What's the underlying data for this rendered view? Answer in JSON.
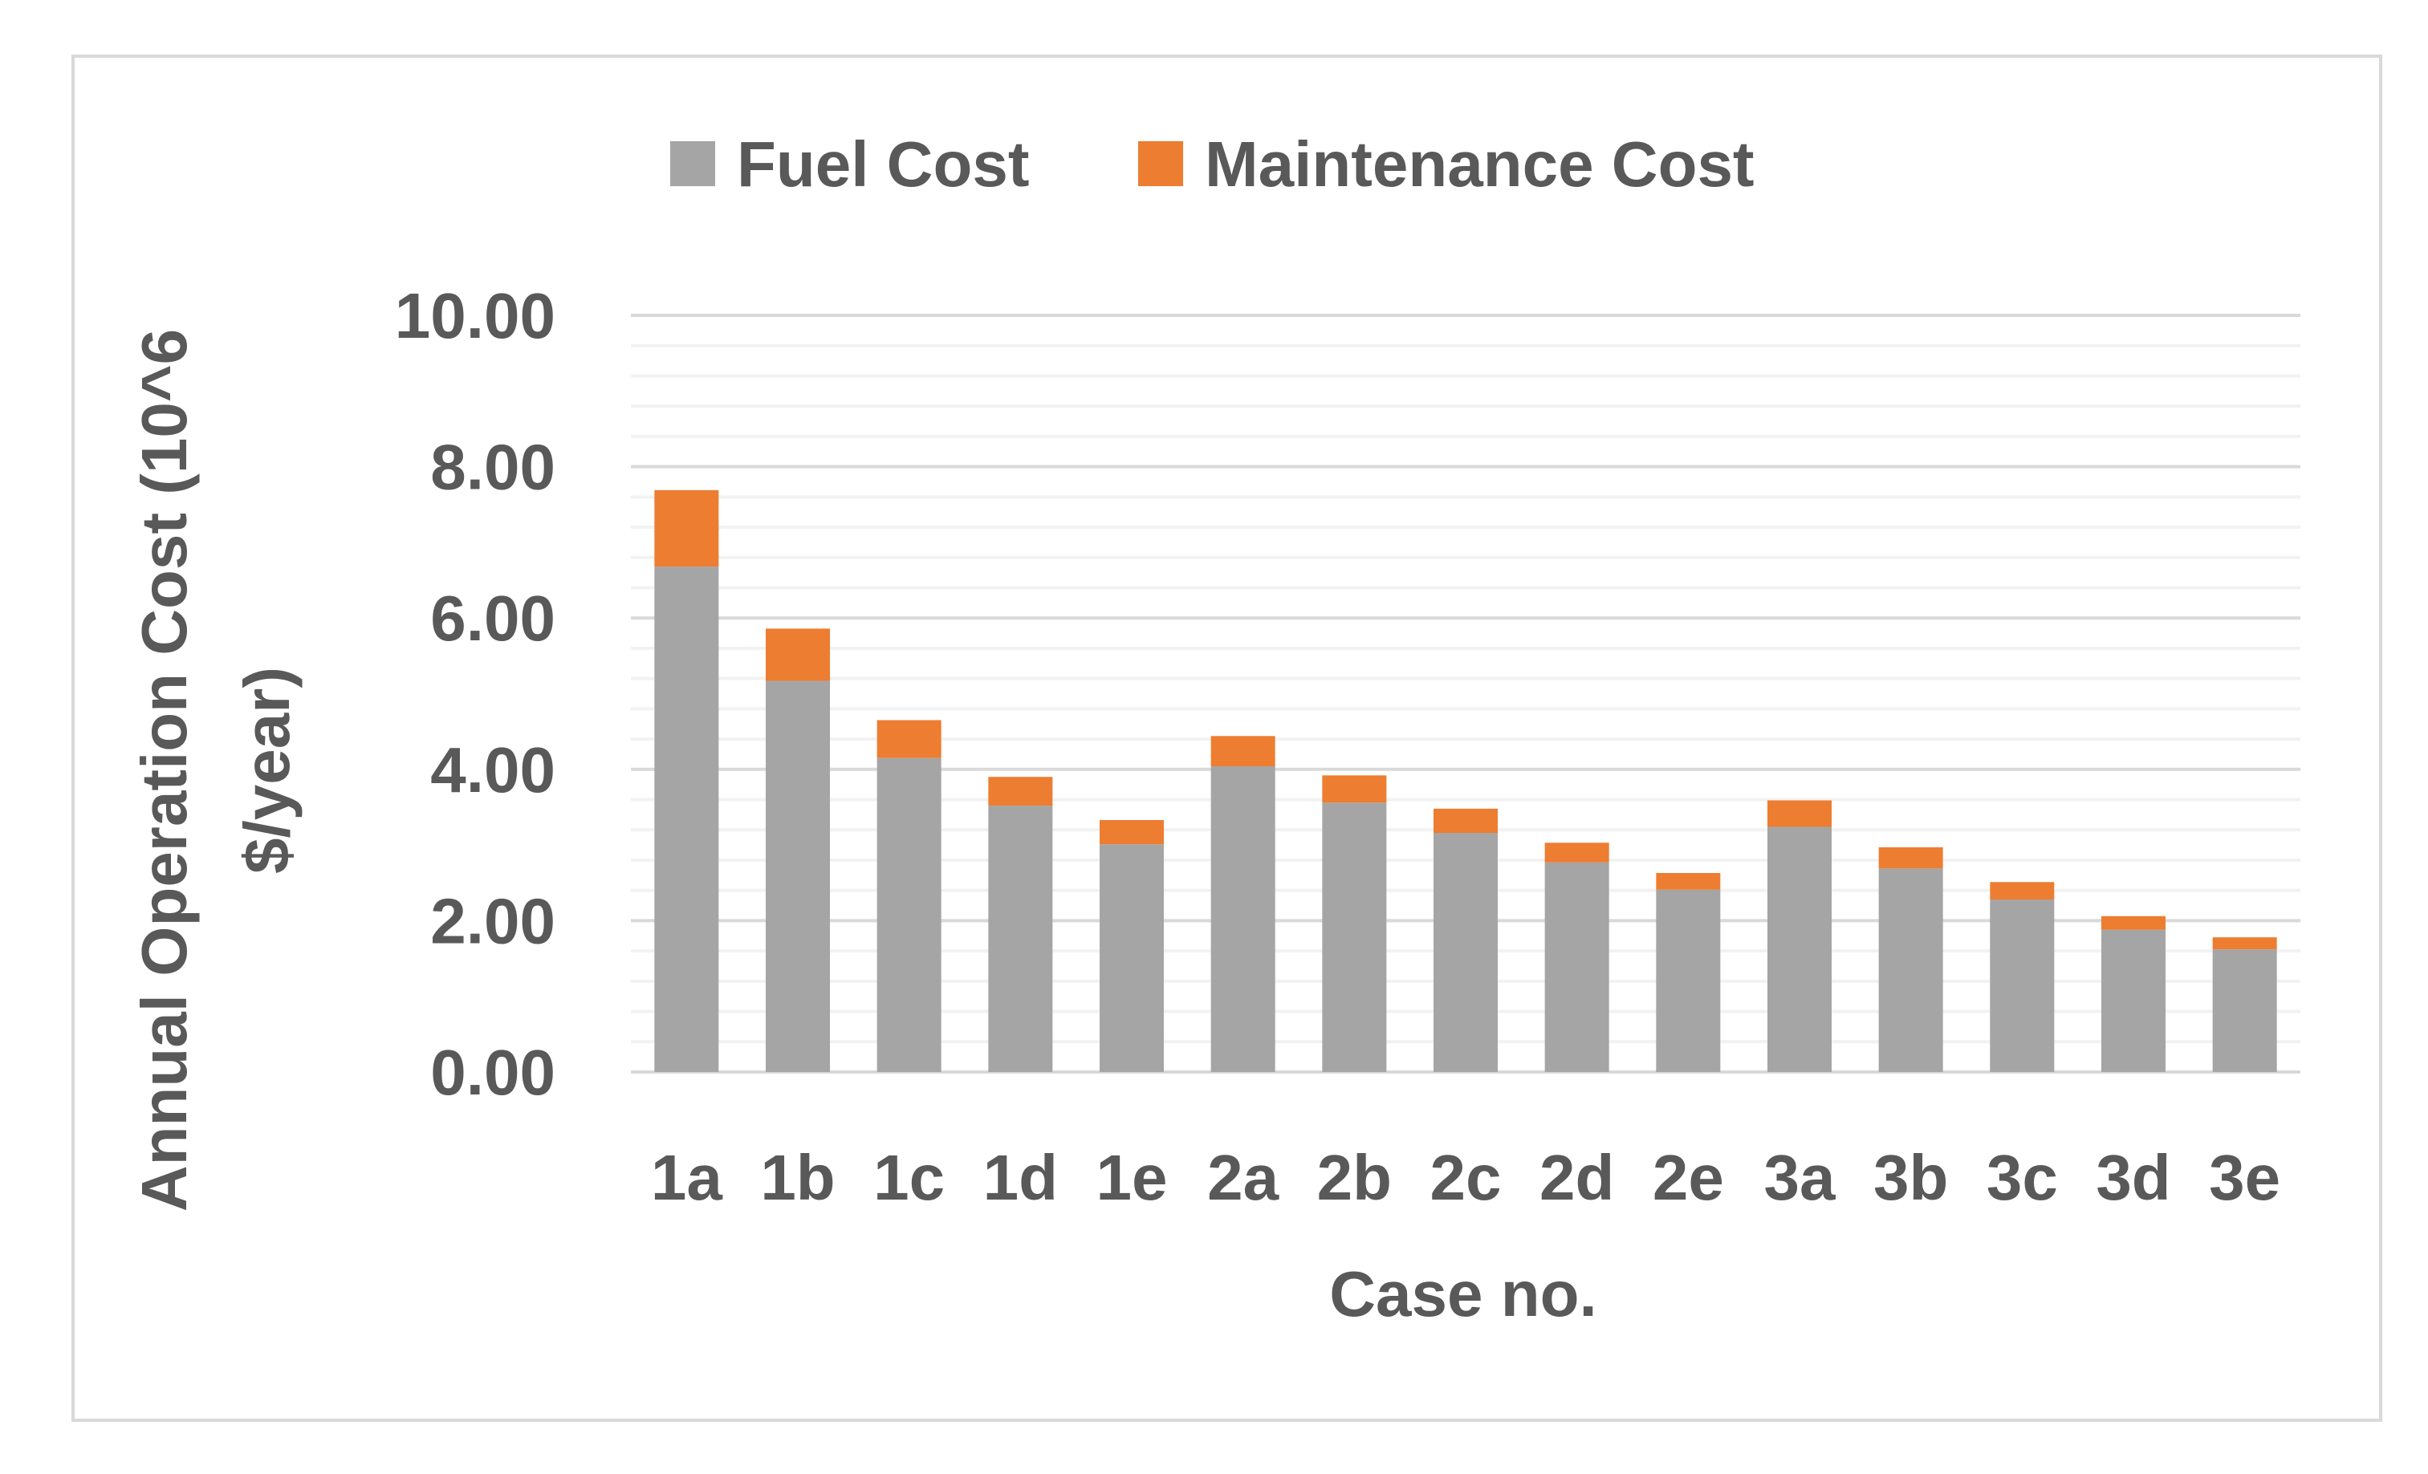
{
  "chart_data": {
    "type": "bar",
    "stacked": true,
    "title": "",
    "xlabel": "Case no.",
    "ylabel_line1": "Annual Operation Cost (10^6",
    "ylabel_line2": "$/year)",
    "categories": [
      "1a",
      "1b",
      "1c",
      "1d",
      "1e",
      "2a",
      "2b",
      "2c",
      "2d",
      "2e",
      "3a",
      "3b",
      "3c",
      "3d",
      "3e"
    ],
    "series": [
      {
        "name": "Fuel Cost",
        "color": "#a5a5a5",
        "values": [
          6.68,
          5.17,
          4.15,
          3.52,
          3.01,
          4.04,
          3.56,
          3.16,
          2.77,
          2.41,
          3.24,
          2.69,
          2.28,
          1.88,
          1.62
        ]
      },
      {
        "name": "Maintenance Cost",
        "color": "#ed7d31",
        "values": [
          1.01,
          0.69,
          0.5,
          0.38,
          0.32,
          0.4,
          0.36,
          0.32,
          0.26,
          0.22,
          0.35,
          0.28,
          0.23,
          0.18,
          0.16
        ]
      }
    ],
    "ylim": [
      0,
      10
    ],
    "yticks": [
      "0.00",
      "2.00",
      "4.00",
      "6.00",
      "8.00",
      "10.00"
    ],
    "grid": true,
    "legend_position": "top"
  }
}
